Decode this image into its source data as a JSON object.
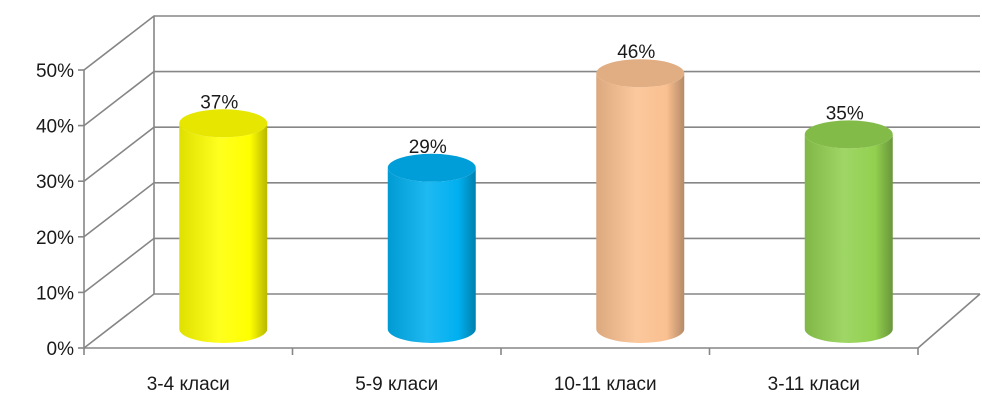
{
  "chart_data": {
    "type": "bar",
    "style": "3d-cylinder",
    "categories": [
      "3-4 класи",
      "5-9 класи",
      "10-11 класи",
      "3-11 класи"
    ],
    "values": [
      37,
      29,
      46,
      35
    ],
    "value_labels": [
      "37%",
      "29%",
      "46%",
      "35%"
    ],
    "bar_colors": [
      "#ffff00",
      "#00b0f0",
      "#fac090",
      "#92d050"
    ],
    "ylim": [
      0,
      50
    ],
    "yticks": [
      0,
      10,
      20,
      30,
      40,
      50
    ],
    "ytick_labels": [
      "0%",
      "10%",
      "20%",
      "30%",
      "40%",
      "50%"
    ],
    "grid": true,
    "legend": false,
    "title": "",
    "xlabel": "",
    "ylabel": ""
  }
}
